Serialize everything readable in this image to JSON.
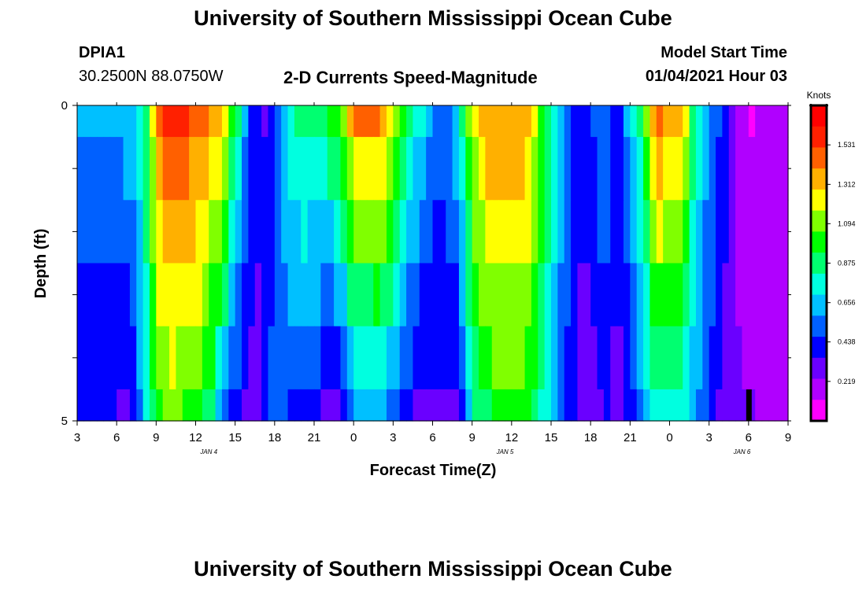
{
  "header": {
    "title": "University of Southern Mississippi Ocean Cube",
    "station_id": "DPIA1",
    "station_coords": "30.2500N 88.0750W",
    "plot_title": "2-D Currents Speed-Magnitude",
    "model_start_label": "Model Start Time",
    "model_start_value": "01/04/2021 Hour 03"
  },
  "footer": {
    "title": "University of Southern Mississippi Ocean Cube"
  },
  "chart_data": {
    "type": "heatmap",
    "title": "2-D Currents Speed-Magnitude",
    "xlabel": "Forecast Time(Z)",
    "ylabel": "Depth (ft)",
    "ylim": [
      0,
      5
    ],
    "y_tick_labels": [
      "0",
      "5"
    ],
    "x_range_hours": [
      0,
      54
    ],
    "x_tick_labels": [
      "3",
      "6",
      "9",
      "12",
      "15",
      "18",
      "21",
      "0",
      "3",
      "6",
      "9",
      "12",
      "15",
      "18",
      "21",
      "0",
      "3",
      "6",
      "9"
    ],
    "date_labels": [
      {
        "text": "JAN 4",
        "hour": 10
      },
      {
        "text": "JAN 5",
        "hour": 32.5
      },
      {
        "text": "JAN 6",
        "hour": 50.5
      }
    ],
    "depth_rows": [
      0.5,
      1.5,
      2.5,
      3.5,
      4.5,
      5.0
    ],
    "time_step_hours": 0.5,
    "depth_profiles": {
      "surface": [
        [
          0,
          0.59
        ],
        [
          3,
          0.6
        ],
        [
          4.5,
          0.7
        ],
        [
          5.5,
          1.0
        ],
        [
          6,
          1.4
        ],
        [
          7,
          1.58
        ],
        [
          9,
          1.48
        ],
        [
          11,
          1.3
        ],
        [
          12,
          0.95
        ],
        [
          13,
          0.5
        ],
        [
          14,
          0.33
        ],
        [
          15,
          0.4
        ],
        [
          16,
          0.74
        ],
        [
          17,
          0.92
        ],
        [
          18,
          0.84
        ],
        [
          19.5,
          0.98
        ],
        [
          20.5,
          1.2
        ],
        [
          21,
          1.4
        ],
        [
          23,
          1.42
        ],
        [
          24,
          1.2
        ],
        [
          25,
          0.9
        ],
        [
          26,
          0.76
        ],
        [
          27,
          0.56
        ],
        [
          28,
          0.52
        ],
        [
          29,
          0.7
        ],
        [
          30,
          1.2
        ],
        [
          31,
          1.4
        ],
        [
          34,
          1.4
        ],
        [
          35,
          1.1
        ],
        [
          36,
          0.8
        ],
        [
          37,
          0.66
        ],
        [
          38,
          0.35
        ],
        [
          39,
          0.44
        ],
        [
          40,
          0.62
        ],
        [
          41,
          0.38
        ],
        [
          42,
          0.66
        ],
        [
          43,
          0.93
        ],
        [
          44,
          1.42
        ],
        [
          46,
          1.3
        ],
        [
          47,
          0.8
        ],
        [
          48,
          0.56
        ],
        [
          49,
          0.45
        ],
        [
          50,
          0.26
        ],
        [
          51,
          0.1
        ],
        [
          53,
          0.18
        ],
        [
          54,
          0.22
        ]
      ],
      "bottom": [
        [
          0,
          0.38
        ],
        [
          2,
          0.38
        ],
        [
          4,
          0.32
        ],
        [
          5,
          0.64
        ],
        [
          6,
          1.0
        ],
        [
          7,
          1.08
        ],
        [
          9,
          1.0
        ],
        [
          10,
          0.9
        ],
        [
          11,
          0.6
        ],
        [
          12,
          0.42
        ],
        [
          13,
          0.26
        ],
        [
          14,
          0.36
        ],
        [
          15,
          0.56
        ],
        [
          16,
          0.46
        ],
        [
          17,
          0.42
        ],
        [
          18,
          0.46
        ],
        [
          19,
          0.3
        ],
        [
          20,
          0.28
        ],
        [
          21,
          0.6
        ],
        [
          23,
          0.62
        ],
        [
          24,
          0.5
        ],
        [
          25,
          0.42
        ],
        [
          26,
          0.28
        ],
        [
          29,
          0.34
        ],
        [
          30,
          0.8
        ],
        [
          32,
          1.0
        ],
        [
          34,
          0.98
        ],
        [
          36,
          0.7
        ],
        [
          37,
          0.42
        ],
        [
          38,
          0.36
        ],
        [
          39,
          0.26
        ],
        [
          40,
          0.38
        ],
        [
          41,
          0.3
        ],
        [
          42,
          0.38
        ],
        [
          43,
          0.58
        ],
        [
          44,
          0.82
        ],
        [
          46,
          0.76
        ],
        [
          47,
          0.6
        ],
        [
          48,
          0.5
        ],
        [
          49,
          0.3
        ],
        [
          50,
          0.24
        ],
        [
          54,
          0.22
        ]
      ]
    },
    "colorbar": {
      "unit": "Knots",
      "ticks": [
        1.531,
        1.312,
        1.094,
        0.875,
        0.656,
        0.438,
        0.219
      ],
      "tick_labels": [
        "1.531",
        "1.312",
        "1.094",
        "0.875",
        "0.656",
        "0.438",
        "0.219"
      ],
      "range": [
        0.0,
        1.75
      ]
    },
    "current_time_marker_hour": 51
  },
  "colors": {
    "scale": [
      "#ff00ff",
      "#b000ff",
      "#6a00ff",
      "#0000ff",
      "#0060ff",
      "#00c0ff",
      "#00ffe0",
      "#00ff70",
      "#00ff00",
      "#80ff00",
      "#ffff00",
      "#ffb000",
      "#ff6000",
      "#ff2000",
      "#ff0000"
    ],
    "marker": "#000000"
  }
}
